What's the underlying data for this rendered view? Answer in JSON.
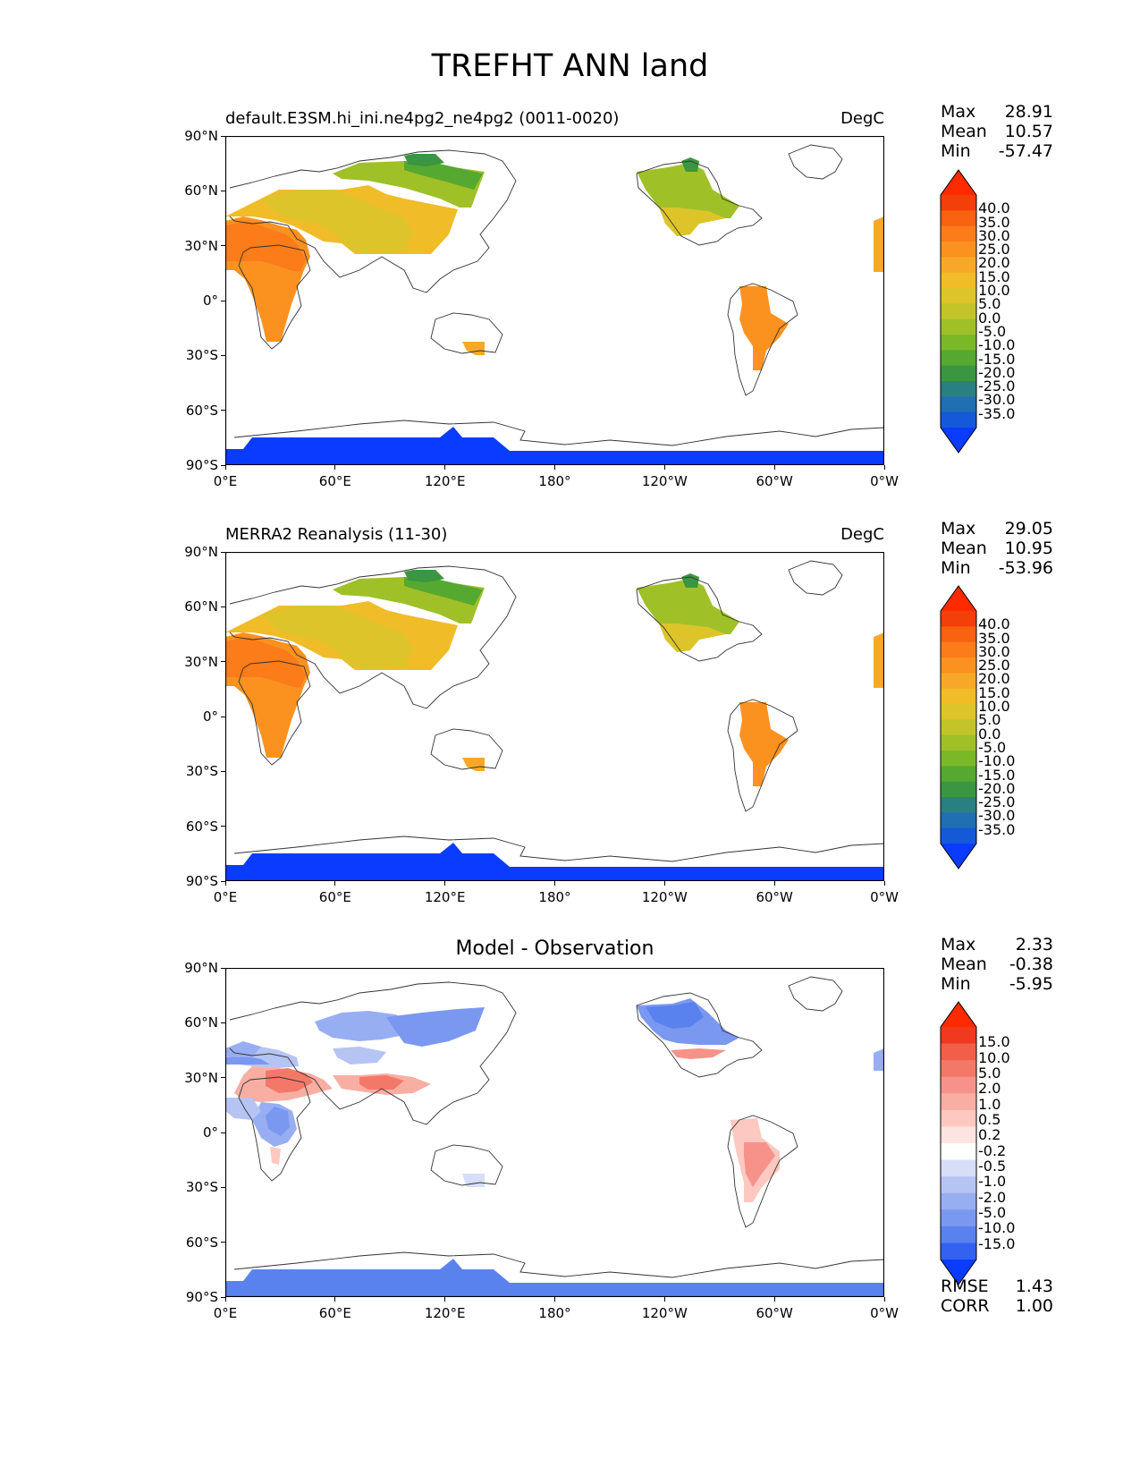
{
  "title": "TREFHT ANN land",
  "x_ticks": [
    "0°E",
    "60°E",
    "120°E",
    "180°",
    "120°W",
    "60°W",
    "0°W"
  ],
  "y_ticks": [
    "90°N",
    "60°N",
    "30°N",
    "0°",
    "30°S",
    "60°S",
    "90°S"
  ],
  "colors": {
    "temperature": [
      "#0a3cff",
      "#1459d8",
      "#1f6fb2",
      "#2a8080",
      "#3a9640",
      "#55a830",
      "#7ab828",
      "#a0c028",
      "#c2c428",
      "#dcc42a",
      "#f0bc28",
      "#f8a828",
      "#fb9220",
      "#fb7c18",
      "#f86210",
      "#f24008",
      "#ff2a00"
    ],
    "difference": [
      "#0a3cff",
      "#3462f0",
      "#5a82ee",
      "#7a98f0",
      "#98aef2",
      "#b6c4f4",
      "#d6def8",
      "#ffffff",
      "#fde4e0",
      "#fcc8c0",
      "#f9aea4",
      "#f6928a",
      "#f47868",
      "#f25e4a",
      "#ef3a20",
      "#ff2a00"
    ]
  },
  "panels": [
    {
      "left_title": "default.E3SM.hi_ini.ne4pg2_ne4pg2 (0011-0020)",
      "right_title": "DegC",
      "stats": {
        "max_label": "Max",
        "max": "28.91",
        "mean_label": "Mean",
        "mean": "10.57",
        "min_label": "Min",
        "min": "-57.47"
      },
      "colorbar_levels": [
        "40.0",
        "35.0",
        "30.0",
        "25.0",
        "20.0",
        "15.0",
        "10.0",
        "5.0",
        "0.0",
        "-5.0",
        "-10.0",
        "-15.0",
        "-20.0",
        "-25.0",
        "-30.0",
        "-35.0"
      ]
    },
    {
      "left_title": "MERRA2 Reanalysis (11-30)",
      "right_title": "DegC",
      "stats": {
        "max_label": "Max",
        "max": "29.05",
        "mean_label": "Mean",
        "mean": "10.95",
        "min_label": "Min",
        "min": "-53.96"
      },
      "colorbar_levels": [
        "40.0",
        "35.0",
        "30.0",
        "25.0",
        "20.0",
        "15.0",
        "10.0",
        "5.0",
        "0.0",
        "-5.0",
        "-10.0",
        "-15.0",
        "-20.0",
        "-25.0",
        "-30.0",
        "-35.0"
      ]
    },
    {
      "center_title": "Model - Observation",
      "stats": {
        "max_label": "Max",
        "max": "2.33",
        "mean_label": "Mean",
        "mean": "-0.38",
        "min_label": "Min",
        "min": "-5.95"
      },
      "colorbar_levels": [
        "15.0",
        "10.0",
        "5.0",
        "2.0",
        "1.0",
        "0.5",
        "0.2",
        "-0.2",
        "-0.5",
        "-1.0",
        "-2.0",
        "-5.0",
        "-10.0",
        "-15.0"
      ],
      "metrics": {
        "rmse_label": "RMSE",
        "rmse": "1.43",
        "corr_label": "CORR",
        "corr": "1.00"
      }
    }
  ]
}
